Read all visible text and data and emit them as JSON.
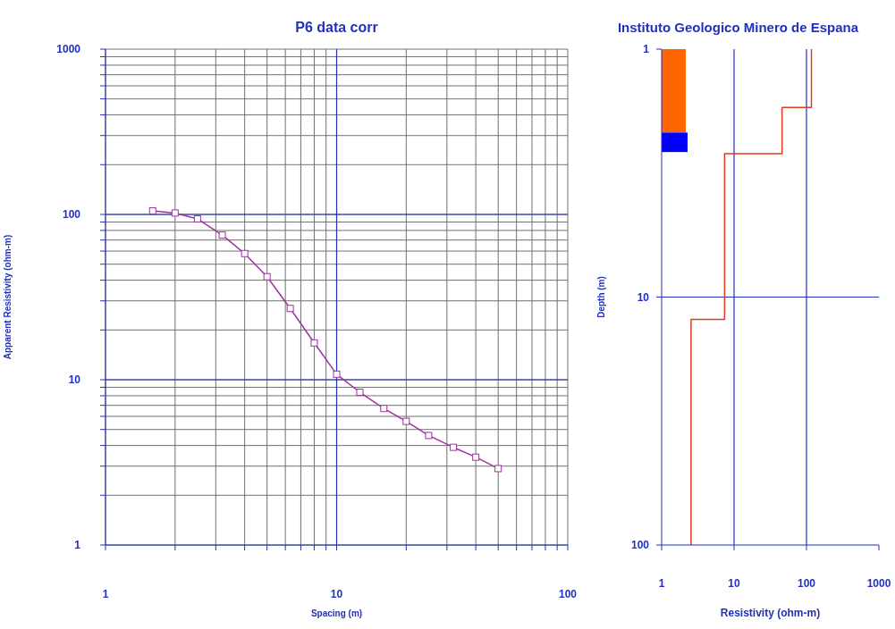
{
  "chart_data": [
    {
      "type": "line",
      "title": "P6 data corr",
      "xlabel": "Spacing (m)",
      "ylabel": "Apparent Resistivity (ohm-m)",
      "log": "xy",
      "grid": true,
      "marker": "square",
      "color": "#a0309f",
      "x": [
        1.6,
        2,
        2.5,
        3.2,
        4,
        5,
        6.3,
        8,
        10,
        12.6,
        16,
        20,
        25,
        32,
        40,
        50
      ],
      "values": [
        105,
        102,
        94,
        75,
        58,
        42,
        27,
        16.7,
        10.8,
        8.4,
        6.7,
        5.6,
        4.6,
        3.9,
        3.4,
        2.9
      ],
      "xlim": [
        1,
        100
      ],
      "ylim": [
        1,
        1000
      ],
      "xticks": [
        1,
        {
          "value": 2,
          "label": null
        },
        {
          "value": 3,
          "label": null
        },
        {
          "value": 4,
          "label": null
        },
        {
          "value": 5,
          "label": null
        },
        {
          "value": 6,
          "label": null
        },
        {
          "value": 7,
          "label": null
        },
        {
          "value": 8,
          "label": null
        },
        {
          "value": 9,
          "label": null
        },
        10,
        {
          "value": 20,
          "label": null
        },
        {
          "value": 30,
          "label": null
        },
        {
          "value": 40,
          "label": null
        },
        {
          "value": 50,
          "label": null
        },
        {
          "value": 60,
          "label": null
        },
        {
          "value": 70,
          "label": null
        },
        {
          "value": 80,
          "label": null
        },
        {
          "value": 90,
          "label": null
        },
        100
      ],
      "yticks": [
        1,
        {
          "value": 2,
          "label": null
        },
        {
          "value": 3,
          "label": null
        },
        {
          "value": 4,
          "label": null
        },
        {
          "value": 5,
          "label": null
        },
        {
          "value": 6,
          "label": null
        },
        {
          "value": 7,
          "label": null
        },
        {
          "value": 8,
          "label": null
        },
        {
          "value": 9,
          "label": null
        },
        10,
        {
          "value": 20,
          "label": null
        },
        {
          "value": 30,
          "label": null
        },
        {
          "value": 40,
          "label": null
        },
        {
          "value": 50,
          "label": null
        },
        {
          "value": 60,
          "label": null
        },
        {
          "value": 70,
          "label": null
        },
        {
          "value": 80,
          "label": null
        },
        {
          "value": 90,
          "label": null
        },
        100,
        {
          "value": 200,
          "label": null
        },
        {
          "value": 300,
          "label": null
        },
        {
          "value": 400,
          "label": null
        },
        {
          "value": 500,
          "label": null
        },
        {
          "value": 600,
          "label": null
        },
        {
          "value": 700,
          "label": null
        },
        {
          "value": 800,
          "label": null
        },
        {
          "value": 900,
          "label": null
        },
        1000
      ]
    },
    {
      "type": "line",
      "title": "Instituto Geologico Minero de Espana",
      "xlabel": "Resistivity (ohm-m)",
      "ylabel": "Depth (m)",
      "log": "xy",
      "grid": true,
      "marker": "none",
      "color": "#e03a20",
      "x": [
        117,
        117,
        46,
        46,
        7.4,
        7.4,
        2.55,
        2.55
      ],
      "values": [
        1,
        1.72,
        1.72,
        2.64,
        2.64,
        12.3,
        12.3,
        100
      ],
      "xlim": [
        1,
        1000
      ],
      "ylim": [
        100,
        1
      ],
      "xticks": [
        1,
        10,
        100,
        1000
      ],
      "yticks": [
        1,
        10,
        100
      ],
      "bands": [
        {
          "axis": "y",
          "from": 1,
          "to": 2.17,
          "color": "#ff6600"
        },
        {
          "axis": "y",
          "from": 2.17,
          "to": 2.6,
          "color": "#0000ff"
        }
      ]
    }
  ]
}
